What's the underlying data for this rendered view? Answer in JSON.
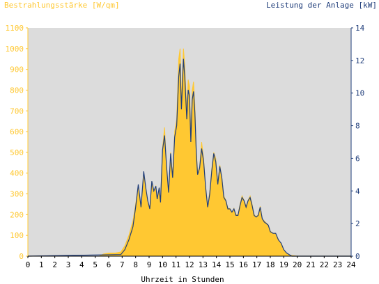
{
  "chart_data": {
    "type": "area",
    "title_left": "Bestrahlungsstärke [W/qm]",
    "title_right": "Leistung der Anlage [kW]",
    "xlabel": "Uhrzeit in Stunden",
    "xlim": [
      0,
      24
    ],
    "x_ticks": [
      "0",
      "1",
      "2",
      "3",
      "4",
      "5",
      "6",
      "7",
      "8",
      "9",
      "10",
      "11",
      "12",
      "13",
      "14",
      "15",
      "16",
      "17",
      "18",
      "19",
      "20",
      "21",
      "22",
      "23",
      "24"
    ],
    "y_left": {
      "label": "Bestrahlungsstärke [W/qm]",
      "lim": [
        0,
        1100
      ],
      "ticks": [
        "0",
        "100",
        "200",
        "300",
        "400",
        "500",
        "600",
        "700",
        "800",
        "900",
        "1000",
        "1100"
      ]
    },
    "y_right": {
      "label": "Leistung der Anlage [kW]",
      "lim": [
        0,
        14
      ],
      "ticks": [
        "0",
        "2",
        "4",
        "6",
        "8",
        "10",
        "12",
        "14"
      ]
    },
    "grid": false,
    "series": [
      {
        "name": "Bestrahlungsstärke [W/qm]",
        "axis": "left",
        "style": "filled area",
        "color": "#FFC832",
        "x": [
          0,
          5.3,
          5.6,
          6.0,
          6.5,
          6.9,
          7.2,
          7.5,
          7.8,
          8.0,
          8.2,
          8.4,
          8.6,
          8.75,
          8.9,
          9.05,
          9.2,
          9.35,
          9.5,
          9.6,
          9.75,
          9.85,
          10.0,
          10.15,
          10.3,
          10.45,
          10.6,
          10.75,
          10.9,
          11.05,
          11.2,
          11.3,
          11.4,
          11.55,
          11.65,
          11.8,
          11.9,
          12.0,
          12.1,
          12.2,
          12.3,
          12.4,
          12.5,
          12.6,
          12.75,
          12.9,
          13.05,
          13.2,
          13.35,
          13.5,
          13.65,
          13.8,
          13.95,
          14.1,
          14.25,
          14.4,
          14.55,
          14.7,
          14.85,
          15.0,
          15.15,
          15.3,
          15.45,
          15.6,
          15.75,
          15.9,
          16.05,
          16.2,
          16.35,
          16.5,
          16.65,
          16.8,
          16.95,
          17.1,
          17.25,
          17.4,
          17.55,
          17.7,
          17.85,
          18.0,
          18.2,
          18.4,
          18.6,
          18.8,
          19.0,
          19.2,
          19.4,
          20.0,
          24
        ],
        "y": [
          0,
          0,
          10,
          15,
          15,
          20,
          50,
          100,
          170,
          250,
          340,
          230,
          400,
          330,
          260,
          230,
          360,
          310,
          340,
          270,
          330,
          250,
          520,
          620,
          430,
          300,
          500,
          380,
          600,
          660,
          950,
          1000,
          760,
          1000,
          920,
          700,
          850,
          820,
          580,
          800,
          840,
          730,
          520,
          400,
          430,
          550,
          470,
          330,
          240,
          310,
          420,
          500,
          470,
          350,
          440,
          380,
          290,
          270,
          230,
          230,
          210,
          230,
          200,
          200,
          250,
          290,
          270,
          240,
          270,
          290,
          250,
          200,
          190,
          200,
          240,
          180,
          170,
          160,
          150,
          120,
          110,
          110,
          80,
          60,
          30,
          15,
          5,
          0,
          0
        ]
      },
      {
        "name": "Leistung der Anlage [kW]",
        "axis": "right",
        "style": "line",
        "color": "#1F3D7A",
        "x": [
          0,
          6.9,
          7.2,
          7.5,
          7.8,
          8.0,
          8.2,
          8.4,
          8.6,
          8.75,
          8.9,
          9.05,
          9.2,
          9.35,
          9.5,
          9.6,
          9.75,
          9.85,
          10.0,
          10.15,
          10.3,
          10.45,
          10.6,
          10.75,
          10.9,
          11.05,
          11.2,
          11.3,
          11.4,
          11.55,
          11.65,
          11.8,
          11.9,
          12.0,
          12.1,
          12.2,
          12.3,
          12.4,
          12.5,
          12.6,
          12.75,
          12.9,
          13.05,
          13.2,
          13.35,
          13.5,
          13.65,
          13.8,
          13.95,
          14.1,
          14.25,
          14.4,
          14.55,
          14.7,
          14.85,
          15.0,
          15.15,
          15.3,
          15.45,
          15.6,
          15.75,
          15.9,
          16.05,
          16.2,
          16.35,
          16.5,
          16.65,
          16.8,
          16.95,
          17.1,
          17.25,
          17.4,
          17.55,
          17.7,
          17.85,
          18.0,
          18.2,
          18.4,
          18.6,
          18.8,
          19.0,
          19.2,
          19.4,
          19.6,
          24
        ],
        "y": [
          0,
          0.1,
          0.4,
          1.0,
          1.8,
          3.0,
          4.4,
          3.0,
          5.2,
          4.2,
          3.4,
          2.9,
          4.6,
          4.0,
          4.3,
          3.5,
          4.2,
          3.3,
          6.5,
          7.4,
          5.5,
          3.9,
          6.3,
          4.8,
          7.3,
          8.0,
          11.0,
          11.8,
          9.0,
          12.1,
          11.0,
          8.4,
          10.2,
          9.8,
          7.0,
          9.6,
          10.1,
          8.8,
          6.4,
          5.0,
          5.4,
          6.6,
          5.8,
          4.2,
          3.0,
          3.8,
          5.2,
          6.3,
          5.8,
          4.4,
          5.5,
          4.8,
          3.6,
          3.4,
          2.9,
          2.9,
          2.7,
          2.9,
          2.5,
          2.5,
          3.1,
          3.6,
          3.4,
          3.0,
          3.4,
          3.6,
          3.1,
          2.5,
          2.4,
          2.5,
          3.0,
          2.3,
          2.1,
          2.0,
          1.9,
          1.5,
          1.4,
          1.4,
          1.0,
          0.8,
          0.4,
          0.2,
          0.1,
          0,
          0
        ]
      }
    ]
  }
}
